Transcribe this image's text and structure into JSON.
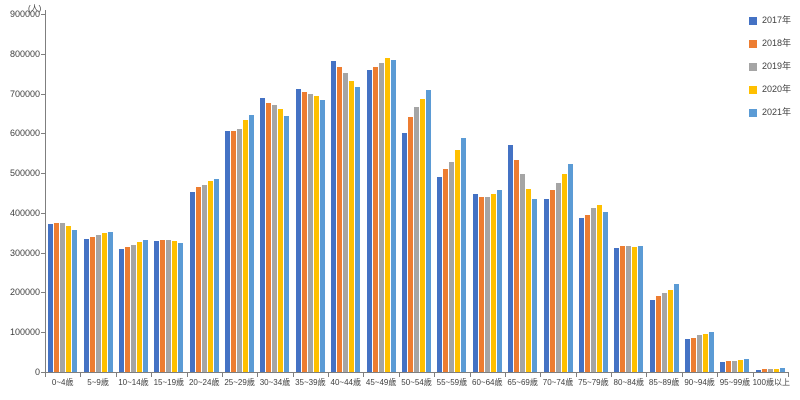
{
  "chart_data": {
    "type": "bar",
    "title": "",
    "unit_label": "(人)",
    "categories": [
      "0~4歳",
      "5~9歳",
      "10~14歳",
      "15~19歳",
      "20~24歳",
      "25~29歳",
      "30~34歳",
      "35~39歳",
      "40~44歳",
      "45~49歳",
      "50~54歳",
      "55~59歳",
      "60~64歳",
      "65~69歳",
      "70~74歳",
      "75~79歳",
      "80~84歳",
      "85~89歳",
      "90~94歳",
      "95~99歳",
      "100歳以上"
    ],
    "series": [
      {
        "name": "2017年",
        "color": "#4472C4",
        "values": [
          371000,
          335000,
          309000,
          330000,
          453000,
          605000,
          689000,
          711000,
          783000,
          760000,
          602000,
          490000,
          447000,
          571000,
          434000,
          388000,
          311000,
          182000,
          82000,
          25000,
          6000
        ]
      },
      {
        "name": "2018年",
        "color": "#ED7D31",
        "values": [
          375000,
          339000,
          314000,
          331000,
          466000,
          607000,
          677000,
          705000,
          768000,
          768000,
          640000,
          511000,
          439000,
          534000,
          457000,
          395000,
          318000,
          192000,
          86000,
          27000,
          7000
        ]
      },
      {
        "name": "2019年",
        "color": "#A5A5A5",
        "values": [
          374000,
          345000,
          320000,
          331000,
          471000,
          612000,
          670000,
          698000,
          751000,
          778000,
          667000,
          528000,
          441000,
          498000,
          475000,
          412000,
          316000,
          199000,
          92000,
          27000,
          7000
        ]
      },
      {
        "name": "2020年",
        "color": "#FFC000",
        "values": [
          366000,
          350000,
          326000,
          330000,
          480000,
          633000,
          660000,
          694000,
          732000,
          789000,
          686000,
          558000,
          447000,
          460000,
          498000,
          420000,
          314000,
          205000,
          96000,
          29000,
          8000
        ]
      },
      {
        "name": "2021年",
        "color": "#5B9BD5",
        "values": [
          356000,
          352000,
          332000,
          324000,
          486000,
          645000,
          643000,
          685000,
          717000,
          785000,
          710000,
          588000,
          458000,
          436000,
          522000,
          403000,
          318000,
          222000,
          100000,
          33000,
          9000
        ]
      }
    ],
    "xlabel": "",
    "ylabel": "(人)",
    "ylim": [
      0,
      900000
    ],
    "ytick_interval": 100000,
    "yticks": [
      0,
      100000,
      200000,
      300000,
      400000,
      500000,
      600000,
      700000,
      800000,
      900000
    ],
    "grid": false,
    "legend_position": "right"
  },
  "legend": {
    "items": [
      {
        "label": "2017年",
        "color": "#4472C4"
      },
      {
        "label": "2018年",
        "color": "#ED7D31"
      },
      {
        "label": "2019年",
        "color": "#A5A5A5"
      },
      {
        "label": "2020年",
        "color": "#FFC000"
      },
      {
        "label": "2021年",
        "color": "#5B9BD5"
      }
    ]
  }
}
